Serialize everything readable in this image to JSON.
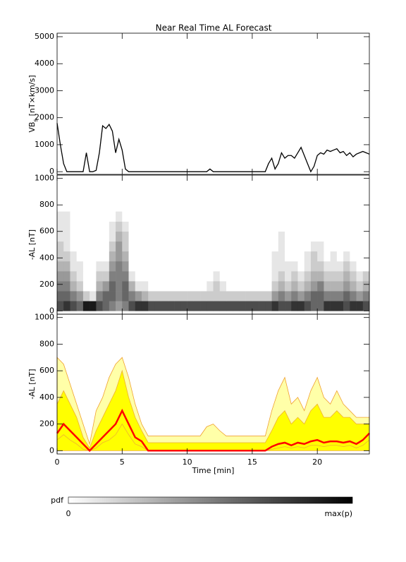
{
  "chart_data": [
    {
      "type": "line",
      "title": "Near Real Time AL Forecast",
      "ylabel": {
        "main": "VB",
        "sub": "s",
        "unit": "[nT×km/s]"
      },
      "x": [
        0,
        0.25,
        0.5,
        0.75,
        1,
        1.25,
        1.5,
        1.75,
        2,
        2.25,
        2.5,
        2.75,
        3,
        3.25,
        3.5,
        3.75,
        4,
        4.25,
        4.5,
        4.75,
        5,
        5.25,
        5.5,
        5.75,
        6,
        6.25,
        6.5,
        6.75,
        7,
        7.25,
        7.5,
        7.75,
        8,
        8.25,
        8.5,
        8.75,
        9,
        9.25,
        9.5,
        9.75,
        10,
        10.25,
        10.5,
        10.75,
        11,
        11.25,
        11.5,
        11.75,
        12,
        12.25,
        12.5,
        12.75,
        13,
        13.25,
        13.5,
        13.75,
        14,
        14.25,
        14.5,
        14.75,
        15,
        15.25,
        15.5,
        15.75,
        16,
        16.25,
        16.5,
        16.75,
        17,
        17.25,
        17.5,
        17.75,
        18,
        18.25,
        18.5,
        18.75,
        19,
        19.25,
        19.5,
        19.75,
        20,
        20.25,
        20.5,
        20.75,
        21,
        21.25,
        21.5,
        21.75,
        22,
        22.25,
        22.5,
        22.75,
        23,
        23.25,
        23.5,
        23.75,
        24
      ],
      "xlim": [
        0,
        24
      ],
      "xticks": [
        0,
        5,
        10,
        15,
        20
      ],
      "ylim": [
        -100,
        5130
      ],
      "yticks": [
        0,
        1000,
        2000,
        3000,
        4000,
        5000
      ],
      "series": [
        {
          "color": "#000000",
          "values": [
            1800,
            1000,
            300,
            0,
            0,
            0,
            0,
            0,
            0,
            700,
            0,
            0,
            50,
            700,
            1700,
            1600,
            1750,
            1500,
            700,
            1200,
            800,
            100,
            0,
            0,
            0,
            0,
            0,
            0,
            0,
            0,
            0,
            0,
            0,
            0,
            0,
            0,
            0,
            0,
            0,
            0,
            0,
            0,
            0,
            0,
            0,
            0,
            0,
            100,
            0,
            0,
            0,
            0,
            0,
            0,
            0,
            0,
            0,
            0,
            0,
            0,
            0,
            0,
            0,
            0,
            0,
            300,
            500,
            100,
            300,
            700,
            500,
            600,
            600,
            500,
            700,
            900,
            600,
            300,
            0,
            200,
            600,
            700,
            650,
            800,
            750,
            800,
            850,
            700,
            750,
            600,
            700,
            550,
            650,
            700,
            750,
            700,
            650
          ]
        }
      ]
    },
    {
      "type": "heatmap",
      "ylabel": "-AL [nT]",
      "x_bins": [
        0,
        0.5,
        1,
        1.5,
        2,
        2.5,
        3,
        3.5,
        4,
        4.5,
        5,
        5.5,
        6,
        6.5,
        7,
        7.5,
        8,
        8.5,
        9,
        9.5,
        10,
        10.5,
        11,
        11.5,
        12,
        12.5,
        13,
        13.5,
        14,
        14.5,
        15,
        15.5,
        16,
        16.5,
        17,
        17.5,
        18,
        18.5,
        19,
        19.5,
        20,
        20.5,
        21,
        21.5,
        22,
        22.5,
        23,
        23.5,
        24
      ],
      "y_bins": [
        0,
        75,
        150,
        225,
        300,
        375,
        450,
        525,
        600,
        675,
        750
      ],
      "z": [
        [
          0.7,
          0.8,
          0.7,
          0.6,
          0.9,
          0.9,
          0.7,
          0.6,
          0.5,
          0.4,
          0.5,
          0.7,
          0.8,
          0.8,
          0.7,
          0.7,
          0.7,
          0.7,
          0.7,
          0.7,
          0.7,
          0.7,
          0.7,
          0.7,
          0.7,
          0.7,
          0.7,
          0.7,
          0.7,
          0.7,
          0.7,
          0.7,
          0.7,
          0.8,
          0.7,
          0.7,
          0.8,
          0.8,
          0.7,
          0.6,
          0.6,
          0.8,
          0.8,
          0.8,
          0.7,
          0.8,
          0.8,
          0.7
        ],
        [
          0.6,
          0.6,
          0.5,
          0.4,
          0.2,
          0.1,
          0.5,
          0.6,
          0.6,
          0.5,
          0.6,
          0.5,
          0.4,
          0.3,
          0.2,
          0.2,
          0.2,
          0.2,
          0.2,
          0.2,
          0.2,
          0.2,
          0.2,
          0.2,
          0.2,
          0.2,
          0.2,
          0.2,
          0.2,
          0.2,
          0.2,
          0.2,
          0.2,
          0.4,
          0.5,
          0.4,
          0.5,
          0.4,
          0.5,
          0.6,
          0.6,
          0.5,
          0.5,
          0.5,
          0.6,
          0.5,
          0.4,
          0.5
        ],
        [
          0.5,
          0.5,
          0.3,
          0.2,
          0,
          0,
          0.3,
          0.4,
          0.6,
          0.5,
          0.6,
          0.3,
          0.1,
          0.1,
          0,
          0,
          0,
          0,
          0,
          0,
          0,
          0,
          0,
          0.1,
          0.2,
          0.1,
          0,
          0,
          0,
          0,
          0,
          0,
          0,
          0.2,
          0.3,
          0.2,
          0.3,
          0.2,
          0.3,
          0.4,
          0.5,
          0.3,
          0.3,
          0.3,
          0.4,
          0.3,
          0.2,
          0.3
        ],
        [
          0.4,
          0.4,
          0.2,
          0.1,
          0,
          0,
          0.2,
          0.2,
          0.5,
          0.5,
          0.5,
          0.1,
          0,
          0,
          0,
          0,
          0,
          0,
          0,
          0,
          0,
          0,
          0,
          0,
          0.1,
          0,
          0,
          0,
          0,
          0,
          0,
          0,
          0,
          0.1,
          0.2,
          0.1,
          0.2,
          0.1,
          0.2,
          0.3,
          0.3,
          0.2,
          0.2,
          0.2,
          0.3,
          0.2,
          0.1,
          0.2
        ],
        [
          0.3,
          0.3,
          0.1,
          0.1,
          0,
          0,
          0.1,
          0.1,
          0.4,
          0.5,
          0.4,
          0,
          0,
          0,
          0,
          0,
          0,
          0,
          0,
          0,
          0,
          0,
          0,
          0,
          0,
          0,
          0,
          0,
          0,
          0,
          0,
          0,
          0,
          0.1,
          0.1,
          0.1,
          0.1,
          0,
          0.1,
          0.2,
          0.2,
          0.1,
          0.1,
          0.1,
          0.2,
          0.1,
          0,
          0
        ],
        [
          0.2,
          0.2,
          0.1,
          0,
          0,
          0,
          0,
          0,
          0.3,
          0.4,
          0.3,
          0,
          0,
          0,
          0,
          0,
          0,
          0,
          0,
          0,
          0,
          0,
          0,
          0,
          0,
          0,
          0,
          0,
          0,
          0,
          0,
          0,
          0,
          0.1,
          0.1,
          0,
          0,
          0,
          0.1,
          0.2,
          0.1,
          0,
          0.1,
          0,
          0.1,
          0,
          0,
          0
        ],
        [
          0.2,
          0.1,
          0,
          0,
          0,
          0,
          0,
          0,
          0.2,
          0.4,
          0.2,
          0,
          0,
          0,
          0,
          0,
          0,
          0,
          0,
          0,
          0,
          0,
          0,
          0,
          0,
          0,
          0,
          0,
          0,
          0,
          0,
          0,
          0,
          0,
          0.1,
          0,
          0,
          0,
          0,
          0.1,
          0.1,
          0,
          0,
          0,
          0,
          0,
          0,
          0
        ],
        [
          0.1,
          0.1,
          0,
          0,
          0,
          0,
          0,
          0,
          0.1,
          0.3,
          0.2,
          0,
          0,
          0,
          0,
          0,
          0,
          0,
          0,
          0,
          0,
          0,
          0,
          0,
          0,
          0,
          0,
          0,
          0,
          0,
          0,
          0,
          0,
          0,
          0.1,
          0,
          0,
          0,
          0,
          0,
          0,
          0,
          0,
          0,
          0,
          0,
          0,
          0
        ],
        [
          0.1,
          0.1,
          0,
          0,
          0,
          0,
          0,
          0,
          0.1,
          0.2,
          0.1,
          0,
          0,
          0,
          0,
          0,
          0,
          0,
          0,
          0,
          0,
          0,
          0,
          0,
          0,
          0,
          0,
          0,
          0,
          0,
          0,
          0,
          0,
          0,
          0,
          0,
          0,
          0,
          0,
          0,
          0,
          0,
          0,
          0,
          0,
          0,
          0,
          0
        ],
        [
          0.1,
          0.1,
          0,
          0,
          0,
          0,
          0,
          0,
          0,
          0.1,
          0,
          0,
          0,
          0,
          0,
          0,
          0,
          0,
          0,
          0,
          0,
          0,
          0,
          0,
          0,
          0,
          0,
          0,
          0,
          0,
          0,
          0,
          0,
          0,
          0,
          0,
          0,
          0,
          0,
          0,
          0,
          0,
          0,
          0,
          0,
          0,
          0,
          0
        ]
      ],
      "xlim": [
        0,
        24
      ],
      "xticks": [
        0,
        5,
        10,
        15,
        20
      ],
      "ylim": [
        -25,
        1025
      ],
      "yticks": [
        0,
        200,
        400,
        600,
        800,
        1000
      ],
      "colorbar": {
        "label": "pdf",
        "min_label": "0",
        "max_label": "max(p)"
      }
    },
    {
      "type": "band",
      "ylabel": "-AL [nT]",
      "xlabel": "Time [min]",
      "x": [
        0,
        0.5,
        1,
        1.5,
        2,
        2.5,
        3,
        3.5,
        4,
        4.5,
        5,
        5.5,
        6,
        6.5,
        7,
        7.5,
        8,
        8.5,
        9,
        9.5,
        10,
        10.5,
        11,
        11.5,
        12,
        12.5,
        13,
        13.5,
        14,
        14.5,
        15,
        15.5,
        16,
        16.5,
        17,
        17.5,
        18,
        18.5,
        19,
        19.5,
        20,
        20.5,
        21,
        21.5,
        22,
        22.5,
        23,
        23.5,
        24
      ],
      "xlim": [
        0,
        24
      ],
      "xticks": [
        0,
        5,
        10,
        15,
        20
      ],
      "ylim": [
        -25,
        1025
      ],
      "yticks": [
        0,
        200,
        400,
        600,
        800,
        1000
      ],
      "series": [
        {
          "color": "#f0a030",
          "fill": "#ffffa8",
          "linewidth": 0.8,
          "values": [
            700,
            650,
            500,
            350,
            200,
            50,
            300,
            400,
            550,
            650,
            700,
            550,
            350,
            200,
            110,
            110,
            110,
            110,
            110,
            110,
            110,
            110,
            110,
            180,
            200,
            150,
            110,
            110,
            110,
            110,
            110,
            110,
            110,
            300,
            450,
            550,
            350,
            400,
            300,
            450,
            550,
            400,
            350,
            450,
            350,
            300,
            250,
            250,
            250
          ]
        },
        {
          "color": "#f0b030",
          "fill": "#ffff00",
          "linewidth": 0.8,
          "values": [
            350,
            450,
            350,
            250,
            100,
            20,
            150,
            250,
            350,
            450,
            600,
            400,
            250,
            150,
            60,
            60,
            60,
            60,
            60,
            60,
            60,
            60,
            60,
            60,
            60,
            60,
            60,
            60,
            60,
            60,
            60,
            60,
            60,
            150,
            250,
            300,
            200,
            250,
            200,
            300,
            350,
            250,
            250,
            300,
            250,
            250,
            200,
            200,
            200
          ]
        },
        {
          "color": "#f0b030",
          "linewidth": 0.8,
          "values": [
            80,
            120,
            80,
            50,
            10,
            0,
            20,
            60,
            80,
            120,
            200,
            120,
            50,
            30,
            0,
            0,
            0,
            0,
            0,
            0,
            0,
            0,
            0,
            0,
            0,
            0,
            0,
            0,
            0,
            0,
            0,
            0,
            0,
            10,
            20,
            30,
            20,
            30,
            20,
            40,
            40,
            30,
            40,
            40,
            30,
            40,
            20,
            40,
            80
          ]
        },
        {
          "color": "#ff0000",
          "linewidth": 2.5,
          "values": [
            130,
            200,
            150,
            100,
            50,
            0,
            50,
            100,
            150,
            200,
            300,
            200,
            100,
            70,
            0,
            0,
            0,
            0,
            0,
            0,
            0,
            0,
            0,
            0,
            0,
            0,
            0,
            0,
            0,
            0,
            0,
            0,
            0,
            30,
            50,
            60,
            40,
            60,
            50,
            70,
            80,
            60,
            70,
            70,
            60,
            70,
            50,
            80,
            130
          ]
        }
      ]
    }
  ]
}
